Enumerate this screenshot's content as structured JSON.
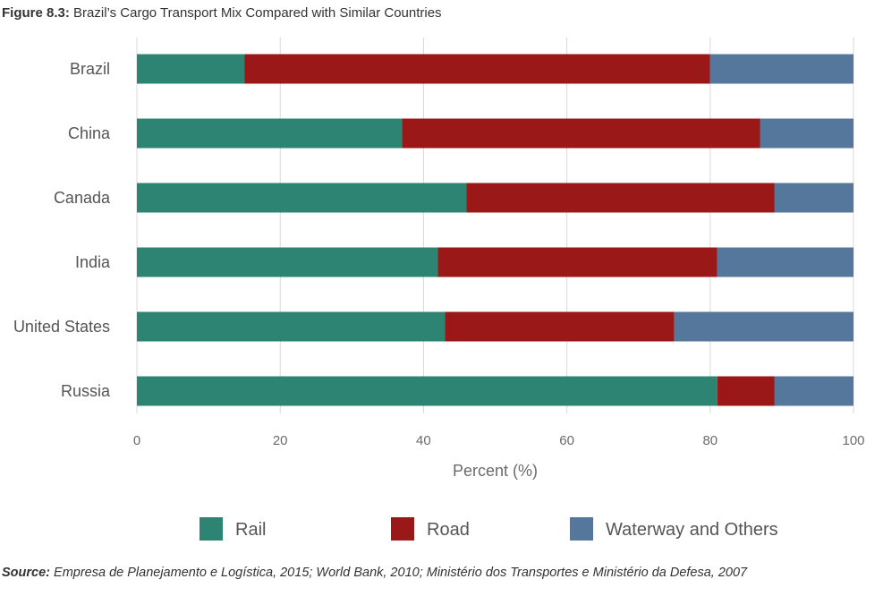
{
  "figure": {
    "label": "Figure 8.3:",
    "title": "Brazil’s Cargo Transport Mix Compared with Similar Countries"
  },
  "source": {
    "label": "Source:",
    "text": "Empresa de Planejamento e Logística, 2015; World Bank, 2010; Ministério dos Transportes e Ministério da Defesa, 2007"
  },
  "chart_data": {
    "type": "bar",
    "orientation": "horizontal",
    "stacked": true,
    "categories": [
      "Brazil",
      "China",
      "Canada",
      "India",
      "United States",
      "Russia"
    ],
    "series": [
      {
        "name": "Rail",
        "color": "#2e8472",
        "values": [
          15,
          37,
          46,
          42,
          43,
          81
        ]
      },
      {
        "name": "Road",
        "color": "#9b1818",
        "values": [
          65,
          50,
          43,
          39,
          32,
          8
        ]
      },
      {
        "name": "Waterway and Others",
        "color": "#54779b",
        "values": [
          20,
          13,
          11,
          19,
          25,
          11
        ]
      }
    ],
    "xlabel": "Percent (%)",
    "ylabel": "",
    "xlim": [
      0,
      100
    ],
    "xticks": [
      0,
      20,
      40,
      60,
      80,
      100
    ],
    "grid": "vertical",
    "legend_position": "bottom"
  }
}
